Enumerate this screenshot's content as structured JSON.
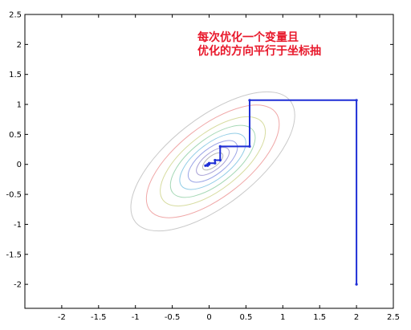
{
  "chart_data": {
    "type": "line",
    "title": "",
    "xlabel": "",
    "ylabel": "",
    "xlim": [
      -2.5,
      2.5
    ],
    "ylim": [
      -2.4,
      2.5
    ],
    "x_ticks": [
      -2,
      -1.5,
      -1,
      -0.5,
      0,
      0.5,
      1,
      1.5,
      2,
      2.5
    ],
    "y_ticks": [
      2.5,
      2,
      1.5,
      1,
      0.5,
      0,
      -0.5,
      -1,
      -1.5,
      -2
    ],
    "grid": false,
    "annotation_lines": [
      "每次优化一个变量且",
      "优化的方向平行于坐标抽"
    ],
    "series": [
      {
        "color": "#1f2fd6",
        "x": [
          2,
          2,
          0.55,
          0.55,
          0.15,
          0.15,
          0.08,
          0.08,
          0.0,
          0.0,
          -0.02,
          -0.02,
          -0.05
        ],
        "y": [
          -2.0,
          1.07,
          1.07,
          0.3,
          0.3,
          0.07,
          0.07,
          0.02,
          0.02,
          0.0,
          0.0,
          -0.02,
          -0.02
        ]
      }
    ],
    "contours": [
      {
        "color": "#b8b8b8",
        "scale": 0.36
      },
      {
        "color": "#a7a0d6",
        "scale": 0.58
      },
      {
        "color": "#9aa4e6",
        "scale": 0.87
      },
      {
        "color": "#92cde6",
        "scale": 1.17
      },
      {
        "color": "#a6d8b6",
        "scale": 1.5
      },
      {
        "color": "#d7dca0",
        "scale": 1.86
      },
      {
        "color": "#f0a8a8",
        "scale": 2.35
      },
      {
        "color": "#c9c9c9",
        "scale": 2.9
      }
    ]
  }
}
